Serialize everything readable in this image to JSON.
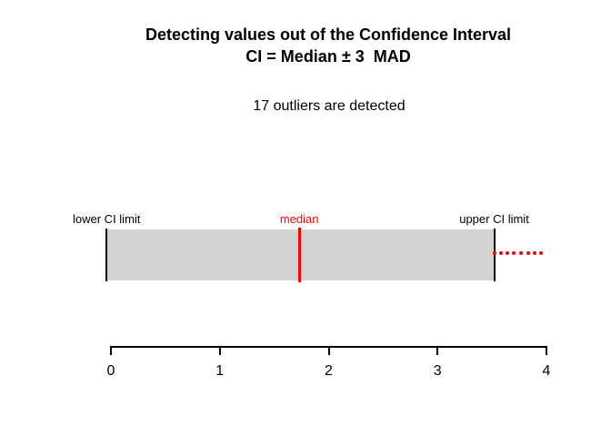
{
  "title": {
    "line1": "Detecting values out of the Confidence Interval",
    "line2": "CI = Median ± 3  MAD"
  },
  "subtitle": "17 outliers are detected",
  "labels": {
    "lower": "lower CI limit",
    "median": "median",
    "upper": "upper CI limit"
  },
  "colors": {
    "bar_fill": "#d3d3d3",
    "accent_red": "#ff0000",
    "axis_black": "#000000"
  },
  "chart_data": {
    "type": "interval-plot",
    "title": "Detecting values out of the Confidence Interval",
    "subtitle": "CI = Median ± 3  MAD",
    "annotation": "17 outliers are detected",
    "outlier_count": 17,
    "lower_ci": -0.04,
    "median": 1.73,
    "upper_ci": 3.52,
    "mad_multiplier": 3,
    "outlier_x": [
      3.52,
      3.58,
      3.64,
      3.7,
      3.77,
      3.83,
      3.89,
      3.95
    ],
    "xaxis": {
      "ticks": [
        0,
        1,
        2,
        3,
        4
      ],
      "range": [
        0,
        4
      ],
      "grid": false
    },
    "legend": "none"
  }
}
